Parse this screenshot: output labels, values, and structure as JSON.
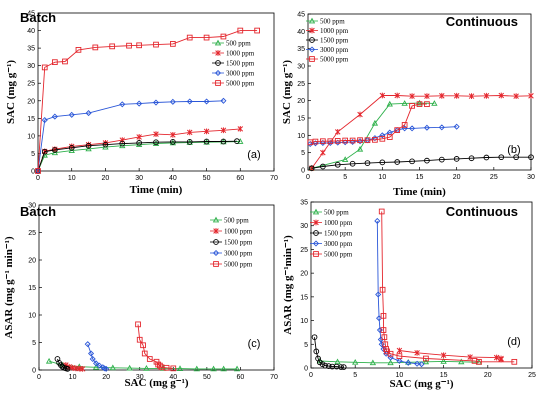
{
  "chart_data": [
    {
      "id": "a",
      "type": "line",
      "title": "Batch",
      "panel_label": "(a)",
      "xlabel": "Time (min)",
      "ylabel": "SAC (mg g⁻¹)",
      "xlim": [
        0,
        70
      ],
      "ylim": [
        0,
        45
      ],
      "xticks": [
        0,
        10,
        20,
        30,
        40,
        50,
        60,
        70
      ],
      "yticks": [
        0,
        5,
        10,
        15,
        20,
        25,
        30,
        35,
        40,
        45
      ],
      "legend_position": "right",
      "series": [
        {
          "name": "500 ppm",
          "color": "#2db04a",
          "marker": "triangle",
          "x": [
            0,
            2,
            5,
            10,
            15,
            20,
            25,
            30,
            35,
            40,
            45,
            50,
            55,
            60
          ],
          "y": [
            0,
            4.5,
            5.2,
            5.8,
            6.3,
            6.8,
            7.2,
            7.5,
            7.8,
            8.0,
            8.1,
            8.2,
            8.3,
            8.4
          ]
        },
        {
          "name": "1000 ppm",
          "color": "#e4262d",
          "marker": "cross",
          "x": [
            0,
            2,
            5,
            10,
            15,
            20,
            25,
            30,
            35,
            40,
            45,
            50,
            55,
            60
          ],
          "y": [
            0,
            5.6,
            6.2,
            7.0,
            7.5,
            8.0,
            8.8,
            9.7,
            10.5,
            10.3,
            11.0,
            11.3,
            11.6,
            12.0
          ]
        },
        {
          "name": "1500 ppm",
          "color": "#000000",
          "marker": "circle",
          "x": [
            0,
            2,
            5,
            10,
            15,
            20,
            25,
            30,
            35,
            40,
            45,
            50,
            55,
            59
          ],
          "y": [
            0,
            5.5,
            6.0,
            6.6,
            7.2,
            7.5,
            7.8,
            8.0,
            8.2,
            8.3,
            8.3,
            8.4,
            8.4,
            8.5
          ]
        },
        {
          "name": "3000 ppm",
          "color": "#2b57d8",
          "marker": "diamond",
          "x": [
            0,
            2,
            5,
            10,
            15,
            25,
            30,
            35,
            40,
            45,
            50,
            55
          ],
          "y": [
            0,
            14.5,
            15.5,
            16.0,
            16.5,
            19.0,
            19.2,
            19.5,
            19.7,
            19.8,
            19.8,
            20.0
          ]
        },
        {
          "name": "5000 ppm",
          "color": "#e4262d",
          "marker": "square",
          "x": [
            0,
            2,
            5,
            8,
            12,
            17,
            22,
            27,
            30,
            35,
            40,
            45,
            50,
            55,
            60,
            65
          ],
          "y": [
            0,
            29.5,
            31.0,
            31.2,
            34.5,
            35.2,
            35.5,
            35.7,
            35.8,
            36.0,
            36.2,
            38.0,
            38.0,
            38.3,
            40.0,
            40.0
          ]
        }
      ]
    },
    {
      "id": "b",
      "type": "line",
      "title": "Continuous",
      "panel_label": "(b)",
      "xlabel": "Time (min)",
      "ylabel": "SAC (mg g⁻¹)",
      "xlim": [
        0,
        30
      ],
      "ylim": [
        0,
        45
      ],
      "xticks": [
        0,
        5,
        10,
        15,
        20,
        25,
        30
      ],
      "yticks": [
        0,
        5,
        10,
        15,
        20,
        25,
        30,
        35,
        40,
        45
      ],
      "legend_position": "top-left",
      "series": [
        {
          "name": "500 ppm",
          "color": "#2db04a",
          "marker": "triangle",
          "x": [
            0.5,
            5,
            7,
            9,
            11,
            13,
            15,
            17
          ],
          "y": [
            0.5,
            3,
            6,
            13.5,
            19,
            19.2,
            19.3,
            19.2
          ]
        },
        {
          "name": "1000 ppm",
          "color": "#e4262d",
          "marker": "cross",
          "x": [
            0.5,
            2,
            4,
            7,
            10,
            12,
            14,
            16,
            18,
            20,
            22,
            24,
            26,
            28,
            30
          ],
          "y": [
            0.5,
            5,
            11,
            16,
            21.5,
            21.5,
            21.3,
            21.3,
            21.4,
            21.4,
            21.3,
            21.4,
            21.5,
            21.3,
            21.4
          ]
        },
        {
          "name": "1500 ppm",
          "color": "#000000",
          "marker": "circle",
          "x": [
            0.5,
            2,
            4,
            6,
            8,
            10,
            12,
            14,
            16,
            18,
            20,
            22,
            24,
            26,
            28,
            30
          ],
          "y": [
            0.5,
            1.0,
            1.5,
            1.8,
            2.0,
            2.2,
            2.3,
            2.5,
            2.7,
            3.0,
            3.2,
            3.4,
            3.6,
            3.7,
            3.7,
            3.7
          ]
        },
        {
          "name": "3000 ppm",
          "color": "#2b57d8",
          "marker": "diamond",
          "x": [
            0.3,
            1,
            2,
            3,
            4,
            5,
            6,
            7,
            8,
            9,
            10,
            11,
            12,
            13,
            14,
            16,
            18,
            20
          ],
          "y": [
            7.5,
            7.7,
            7.8,
            7.8,
            7.9,
            8.0,
            8.1,
            8.3,
            8.6,
            9.2,
            10.0,
            10.8,
            11.5,
            12.0,
            12.0,
            12.2,
            12.3,
            12.5
          ]
        },
        {
          "name": "5000 ppm",
          "color": "#e4262d",
          "marker": "square",
          "x": [
            0.3,
            1,
            2,
            3,
            4,
            5,
            6,
            7,
            8,
            9,
            10,
            11,
            12,
            13,
            14,
            15,
            16
          ],
          "y": [
            8.0,
            8.2,
            8.3,
            8.3,
            8.4,
            8.5,
            8.5,
            8.6,
            8.6,
            8.7,
            9.0,
            9.5,
            11.5,
            13.0,
            18.5,
            19.0,
            19.0
          ]
        }
      ]
    },
    {
      "id": "c",
      "type": "line",
      "title": "Batch",
      "panel_label": "(c)",
      "xlabel": "SAC (mg g⁻¹)",
      "ylabel": "ASAR (mg g⁻¹ min⁻¹)",
      "xlim": [
        0,
        70
      ],
      "ylim": [
        0,
        30
      ],
      "xticks": [
        0,
        10,
        20,
        30,
        40,
        50,
        60,
        70
      ],
      "yticks": [
        0,
        5,
        10,
        15,
        20,
        25,
        30
      ],
      "legend_position": "right",
      "series": [
        {
          "name": "500 ppm",
          "color": "#2db04a",
          "marker": "triangle",
          "x": [
            3,
            7,
            12,
            17,
            22,
            27,
            32,
            37,
            42,
            47,
            52,
            55,
            59
          ],
          "y": [
            1.6,
            0.9,
            0.6,
            0.5,
            0.4,
            0.35,
            0.3,
            0.3,
            0.25,
            0.2,
            0.2,
            0.2,
            0.2
          ]
        },
        {
          "name": "1000 ppm",
          "color": "#e4262d",
          "marker": "cross",
          "x": [
            8,
            9,
            10,
            11,
            12,
            13
          ],
          "y": [
            0.9,
            0.6,
            0.4,
            0.3,
            0.25,
            0.2
          ]
        },
        {
          "name": "1500 ppm",
          "color": "#000000",
          "marker": "circle",
          "x": [
            5.5,
            6,
            6.5,
            7,
            7.5,
            8,
            8.5
          ],
          "y": [
            2.0,
            1.3,
            0.9,
            0.6,
            0.4,
            0.3,
            0.2
          ]
        },
        {
          "name": "3000 ppm",
          "color": "#2b57d8",
          "marker": "diamond",
          "x": [
            14.5,
            15.5,
            16,
            17,
            18,
            19,
            19.5,
            20
          ],
          "y": [
            4.7,
            3.0,
            2.0,
            1.2,
            0.8,
            0.5,
            0.3,
            0.2
          ]
        },
        {
          "name": "5000 ppm",
          "color": "#e4262d",
          "marker": "square",
          "x": [
            29.5,
            30,
            31,
            31.5,
            33,
            35,
            35.5,
            36,
            36.5,
            38,
            40
          ],
          "y": [
            8.3,
            5.5,
            4.5,
            3.0,
            2.0,
            1.5,
            1.0,
            0.8,
            0.5,
            0.4,
            0.3
          ]
        }
      ]
    },
    {
      "id": "d",
      "type": "line",
      "title": "Continuous",
      "panel_label": "(d)",
      "xlabel": "SAC (mg g⁻¹)",
      "ylabel": "ASAR (mg g⁻¹min⁻¹)",
      "xlim": [
        0,
        25
      ],
      "ylim": [
        0,
        35
      ],
      "xticks": [
        0,
        5,
        10,
        15,
        20,
        25
      ],
      "yticks": [
        0,
        5,
        10,
        15,
        20,
        25,
        30,
        35
      ],
      "legend_position": "top-left",
      "series": [
        {
          "name": "500 ppm",
          "color": "#2db04a",
          "marker": "triangle",
          "x": [
            1,
            3,
            5,
            7,
            9,
            11,
            13,
            15,
            17,
            19
          ],
          "y": [
            1.5,
            1.3,
            1.2,
            1.1,
            1.1,
            1.2,
            1.3,
            1.4,
            1.3,
            1.2
          ]
        },
        {
          "name": "1000 ppm",
          "color": "#e4262d",
          "marker": "cross",
          "x": [
            10,
            12,
            15,
            18,
            21,
            21.5,
            21.5
          ],
          "y": [
            3.7,
            3.2,
            2.7,
            2.3,
            2.2,
            2.0,
            1.8
          ]
        },
        {
          "name": "1500 ppm",
          "color": "#000000",
          "marker": "circle",
          "x": [
            0.4,
            0.6,
            0.8,
            1.0,
            1.3,
            1.6,
            2.0,
            2.4,
            2.9,
            3.4,
            3.7
          ],
          "y": [
            6.5,
            3.5,
            2.0,
            1.2,
            0.8,
            0.5,
            0.4,
            0.3,
            0.3,
            0.2,
            0.2
          ]
        },
        {
          "name": "3000 ppm",
          "color": "#2b57d8",
          "marker": "diamond",
          "x": [
            7.5,
            7.6,
            7.7,
            7.8,
            7.9,
            8.0,
            8.2,
            8.5,
            9.0,
            10.0,
            11.0,
            12.0,
            12.5
          ],
          "y": [
            31,
            15.5,
            10.5,
            8.0,
            6.0,
            5.0,
            4.0,
            3.0,
            2.2,
            1.5,
            1.1,
            0.9,
            0.8
          ]
        },
        {
          "name": "5000 ppm",
          "color": "#e4262d",
          "marker": "square",
          "x": [
            8.0,
            8.1,
            8.2,
            8.2,
            8.3,
            8.4,
            8.5,
            8.6,
            9.0,
            10.0,
            13.0,
            18.5,
            19.0,
            23.0
          ],
          "y": [
            33,
            16.5,
            11.0,
            8.0,
            6.5,
            5.0,
            4.0,
            3.5,
            3.0,
            2.5,
            2.0,
            1.5,
            1.3,
            1.3
          ]
        }
      ]
    }
  ]
}
